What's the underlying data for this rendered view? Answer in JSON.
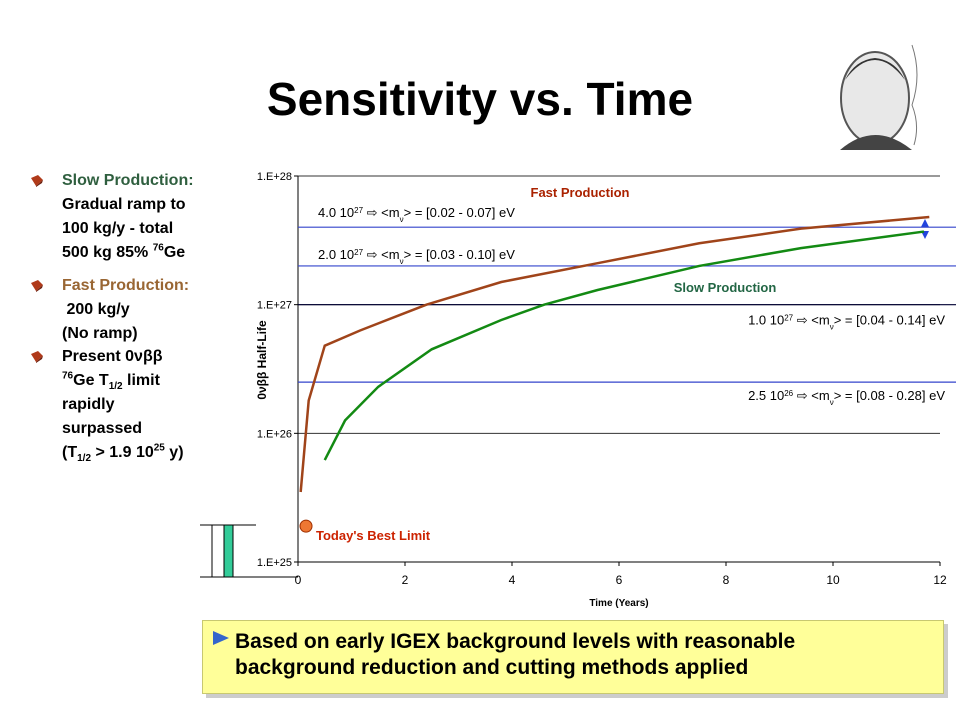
{
  "title": "Sensitivity vs. Time",
  "bullets": [
    {
      "lines": [
        [
          {
            "text": "Slow Production:",
            "color": "#2f5f3f"
          }
        ],
        [
          {
            "text": "Gradual ramp to"
          }
        ],
        [
          {
            "text": "100 kg/y - total"
          }
        ],
        [
          {
            "text": "500 kg 85% "
          },
          {
            "text": "76",
            "pos": "sup"
          },
          {
            "text": "Ge"
          }
        ]
      ]
    },
    {
      "lines": [
        [
          {
            "text": "Fast Production:",
            "color": "#996633"
          }
        ],
        [
          {
            "text": " 200 kg/y"
          }
        ],
        [
          {
            "text": "(No ramp)"
          }
        ]
      ]
    },
    {
      "lines": [
        [
          {
            "text": "Present "
          },
          {
            "text": "0νββ"
          }
        ],
        [
          {
            "text": "76",
            "pos": "sup"
          },
          {
            "text": "Ge T"
          },
          {
            "text": "1/2",
            "pos": "sub"
          },
          {
            "text": " limit"
          }
        ],
        [
          {
            "text": "rapidly"
          }
        ],
        [
          {
            "text": "surpassed"
          }
        ],
        [
          {
            "text": "(T"
          },
          {
            "text": "1/2",
            "pos": "sub"
          },
          {
            "text": " > 1.9 10"
          },
          {
            "text": "25",
            "pos": "sup"
          },
          {
            "text": " y)"
          }
        ]
      ]
    }
  ],
  "note": [
    "Based on early IGEX background levels with reasonable",
    "background reduction and cutting methods applied"
  ],
  "chart_data": {
    "type": "line",
    "xlabel": "Time (Years)",
    "ylabel": "0νββ Half-Life",
    "xlim": [
      0,
      12
    ],
    "xticks": [
      0,
      2,
      4,
      6,
      8,
      10,
      12
    ],
    "ylim": [
      1e+25,
      1e+28
    ],
    "ylog": true,
    "yticks": [
      {
        "value": 1e+25,
        "label": "1.E+25"
      },
      {
        "value": 1e+26,
        "label": "1.E+26"
      },
      {
        "value": 1e+27,
        "label": "1.E+27"
      },
      {
        "value": 1e+28,
        "label": "1.E+28"
      }
    ],
    "grid": true,
    "series": [
      {
        "name": "Fast Production",
        "color": "#a0441a",
        "x": [
          0.05,
          0.2,
          0.5,
          1.16,
          1.9,
          2.4,
          3.8,
          5.6,
          7.5,
          9.4,
          11.8
        ],
        "values": [
          3.5e+25,
          1.8e+26,
          4.8e+26,
          6.3e+26,
          8.3e+26,
          1e+27,
          1.5e+27,
          2.1e+27,
          3e+27,
          3.9e+27,
          4.8e+27
        ]
      },
      {
        "name": "Slow Production",
        "color": "#138a13",
        "x": [
          0.5,
          0.88,
          1.5,
          2.5,
          3.8,
          4.6,
          5.6,
          7.5,
          9.4,
          11.7
        ],
        "values": [
          6.2e+25,
          1.26e+26,
          2.3e+26,
          4.5e+26,
          7.6e+26,
          1e+27,
          1.3e+27,
          2e+27,
          2.75e+27,
          3.7e+27
        ]
      }
    ],
    "reference_lines": [
      {
        "value": 4e+27,
        "color": "#3344cc",
        "label": [
          {
            "text": "4.0 10"
          },
          {
            "text": "27",
            "pos": "sup"
          },
          {
            "text": " ⇨ <m"
          },
          {
            "text": "ν",
            "pos": "sub"
          },
          {
            "text": "> = [0.02 - 0.07] eV"
          }
        ]
      },
      {
        "value": 2e+27,
        "color": "#3344cc",
        "label": [
          {
            "text": "2.0 10"
          },
          {
            "text": "27",
            "pos": "sup"
          },
          {
            "text": " ⇨ <m"
          },
          {
            "text": "ν",
            "pos": "sub"
          },
          {
            "text": "> = [0.03 - 0.10] eV"
          }
        ]
      },
      {
        "value": 1e+27,
        "color": "#000033",
        "label": [
          {
            "text": "1.0 10"
          },
          {
            "text": "27",
            "pos": "sup"
          },
          {
            "text": " ⇨ <m"
          },
          {
            "text": "ν",
            "pos": "sub"
          },
          {
            "text": "> = [0.04 - 0.14] eV"
          }
        ]
      },
      {
        "value": 2.5e+26,
        "color": "#3344cc",
        "label": [
          {
            "text": "2.5 10"
          },
          {
            "text": "26",
            "pos": "sup"
          },
          {
            "text": " ⇨ <m"
          },
          {
            "text": "ν",
            "pos": "sub"
          },
          {
            "text": "> = [0.08 - 0.28] eV"
          }
        ]
      }
    ],
    "points": [
      {
        "name": "Today's Best Limit",
        "x": 0.15,
        "value": 1.9e+25,
        "color": "#ee7733"
      }
    ]
  }
}
